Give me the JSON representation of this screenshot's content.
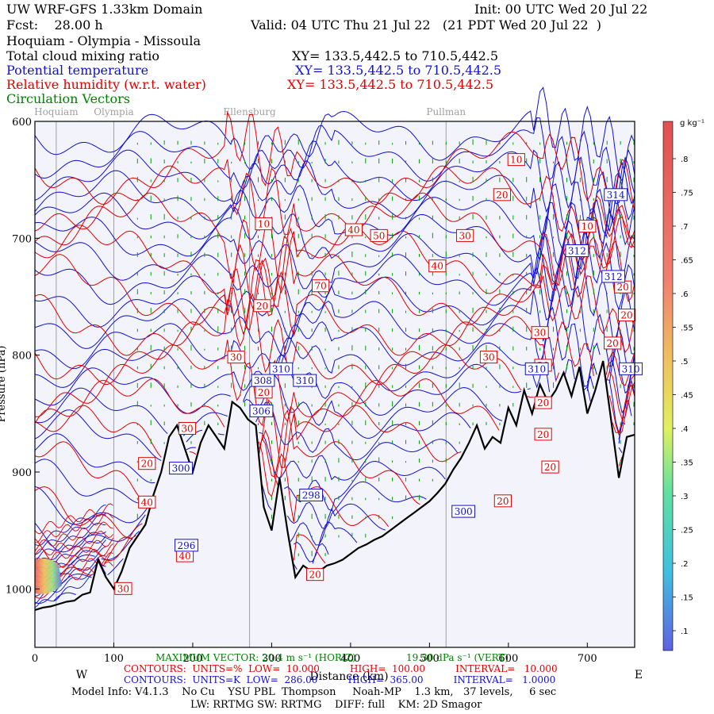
{
  "header": {
    "model_title": "UW WRF-GFS 1.33km Domain",
    "init": "Init: 00 UTC Wed 20 Jul 22",
    "fcst": "Fcst:    28.00 h",
    "valid": "Valid: 04 UTC Thu 21 Jul 22   (21 PDT Wed 20 Jul 22  )",
    "route": "Hoquiam - Olympia - Missoula",
    "field1": "Total cloud mixing ratio",
    "field1_xy": "XY= 133.5,442.5 to 710.5,442.5",
    "field2": "Potential temperature",
    "field2_xy": "XY= 133.5,442.5 to 710.5,442.5",
    "field3": "Relative humidity (w.r.t. water)",
    "field3_xy": "XY= 133.5,442.5 to 710.5,442.5",
    "field4": "Circulation Vectors"
  },
  "colors": {
    "black": "#000000",
    "blue": "#1010d0",
    "red": "#e00000",
    "green": "#008000",
    "grey_marker": "#a0a0a0",
    "plot_bg": "#f3f3fb"
  },
  "chart_data": {
    "type": "cross-section",
    "xlabel": "Distance (km)",
    "ylabel": "Pressure (hPa)",
    "xlim": [
      0,
      760
    ],
    "ylim": [
      1050,
      600
    ],
    "x_ticks": [
      "0",
      "100",
      "200",
      "300",
      "400",
      "500",
      "600",
      "700"
    ],
    "x_tick_values": [
      0,
      100,
      200,
      300,
      400,
      500,
      600,
      700
    ],
    "y_ticks": [
      "600",
      "700",
      "800",
      "900",
      "1000"
    ],
    "y_tick_values": [
      600,
      700,
      800,
      900,
      1000
    ],
    "left_end": "W",
    "right_end": "E",
    "locations": [
      {
        "name": "Hoquiam",
        "km": 27
      },
      {
        "name": "Olympia",
        "km": 100
      },
      {
        "name": "Ellensburg",
        "km": 272
      },
      {
        "name": "Pullman",
        "km": 521
      }
    ],
    "terrain_km": [
      0,
      10,
      20,
      30,
      40,
      50,
      60,
      70,
      80,
      90,
      100,
      110,
      120,
      130,
      140,
      150,
      160,
      170,
      180,
      190,
      200,
      210,
      220,
      230,
      240,
      250,
      260,
      270,
      280,
      290,
      300,
      310,
      320,
      330,
      340,
      350,
      360,
      370,
      380,
      390,
      400,
      410,
      420,
      430,
      440,
      450,
      460,
      470,
      480,
      490,
      500,
      510,
      520,
      530,
      540,
      550,
      560,
      570,
      580,
      590,
      600,
      610,
      620,
      630,
      640,
      650,
      660,
      670,
      680,
      690,
      700,
      710,
      720,
      730,
      740,
      750,
      760
    ],
    "terrain_hpa": [
      1018,
      1016,
      1015,
      1013,
      1011,
      1010,
      1005,
      1003,
      975,
      990,
      1000,
      985,
      965,
      955,
      945,
      920,
      900,
      870,
      860,
      880,
      900,
      875,
      860,
      870,
      880,
      840,
      845,
      855,
      860,
      930,
      950,
      905,
      950,
      990,
      980,
      985,
      985,
      980,
      978,
      975,
      970,
      965,
      962,
      958,
      955,
      950,
      945,
      940,
      935,
      930,
      925,
      918,
      910,
      898,
      888,
      875,
      860,
      880,
      870,
      875,
      845,
      860,
      830,
      850,
      825,
      840,
      830,
      815,
      835,
      810,
      850,
      830,
      805,
      855,
      905,
      870,
      868
    ],
    "cloud_shading": {
      "label": "g kg⁻¹",
      "levels": [
        ".1",
        ".15",
        ".2",
        ".25",
        ".3",
        ".35",
        ".4",
        ".45",
        ".5",
        ".55",
        ".6",
        ".65",
        ".7",
        ".75",
        ".8"
      ]
    },
    "rh_contours": {
      "units": "%",
      "low": "10.000",
      "high": "100.00",
      "interval": "10.000"
    },
    "theta_contours": {
      "units": "K",
      "low": "286.00",
      "high": "365.00",
      "interval": "1.0000"
    },
    "labels_red": [
      {
        "text": "10",
        "km": 290,
        "hpa": 688
      },
      {
        "text": "10",
        "km": 610,
        "hpa": 633
      },
      {
        "text": "20",
        "km": 592,
        "hpa": 663
      },
      {
        "text": "30",
        "km": 545,
        "hpa": 698
      },
      {
        "text": "40",
        "km": 404,
        "hpa": 693
      },
      {
        "text": "50",
        "km": 436,
        "hpa": 698
      },
      {
        "text": "40",
        "km": 510,
        "hpa": 724
      },
      {
        "text": "70",
        "km": 362,
        "hpa": 741
      },
      {
        "text": "20",
        "km": 288,
        "hpa": 758
      },
      {
        "text": "30",
        "km": 640,
        "hpa": 781
      },
      {
        "text": "30",
        "km": 575,
        "hpa": 802
      },
      {
        "text": "30",
        "km": 255,
        "hpa": 802
      },
      {
        "text": "20",
        "km": 290,
        "hpa": 832
      },
      {
        "text": "30",
        "km": 193,
        "hpa": 863
      },
      {
        "text": "20",
        "km": 142,
        "hpa": 893
      },
      {
        "text": "40",
        "km": 142,
        "hpa": 926
      },
      {
        "text": "40",
        "km": 190,
        "hpa": 972
      },
      {
        "text": "30",
        "km": 112,
        "hpa": 1000
      },
      {
        "text": "20",
        "km": 355,
        "hpa": 988
      },
      {
        "text": "10",
        "km": 700,
        "hpa": 690
      },
      {
        "text": "20",
        "km": 745,
        "hpa": 742
      },
      {
        "text": "20",
        "km": 750,
        "hpa": 766
      },
      {
        "text": "20",
        "km": 732,
        "hpa": 790
      },
      {
        "text": "20",
        "km": 644,
        "hpa": 809
      },
      {
        "text": "20",
        "km": 644,
        "hpa": 841
      },
      {
        "text": "20",
        "km": 644,
        "hpa": 868
      },
      {
        "text": "20",
        "km": 653,
        "hpa": 896
      },
      {
        "text": "20",
        "km": 593,
        "hpa": 925
      }
    ],
    "labels_blue": [
      {
        "text": "314",
        "km": 736,
        "hpa": 663
      },
      {
        "text": "312",
        "km": 687,
        "hpa": 711
      },
      {
        "text": "312",
        "km": 733,
        "hpa": 733
      },
      {
        "text": "310",
        "km": 636,
        "hpa": 812
      },
      {
        "text": "310",
        "km": 755,
        "hpa": 812
      },
      {
        "text": "310",
        "km": 312,
        "hpa": 812
      },
      {
        "text": "308",
        "km": 289,
        "hpa": 822
      },
      {
        "text": "310",
        "km": 342,
        "hpa": 822
      },
      {
        "text": "306",
        "km": 287,
        "hpa": 848
      },
      {
        "text": "300",
        "km": 185,
        "hpa": 897
      },
      {
        "text": "298",
        "km": 350,
        "hpa": 920
      },
      {
        "text": "296",
        "km": 192,
        "hpa": 963
      },
      {
        "text": "300",
        "km": 543,
        "hpa": 934
      }
    ]
  },
  "footer": {
    "max_vector": "MAXIMUM VECTOR: 20.4 m s⁻¹ (HORIZ)",
    "max_vector_vert": "19.30 dPa s⁻¹ (VERT)",
    "rh_line": "CONTOURS:  UNITS=%  LOW=  10.000          HIGH=  100.00          INTERVAL=   10.000",
    "theta_line": "CONTOURS:  UNITS=K  LOW=  286.00          HIGH=  365.00          INTERVAL=   1.0000",
    "model_info": "Model Info: V4.1.3    No Cu    YSU PBL  Thompson     Noah-MP    1.3 km,   37 levels,     6 sec",
    "model_info2": "LW: RRTMG SW: RRTMG    DIFF: full    KM: 2D Smagor"
  }
}
